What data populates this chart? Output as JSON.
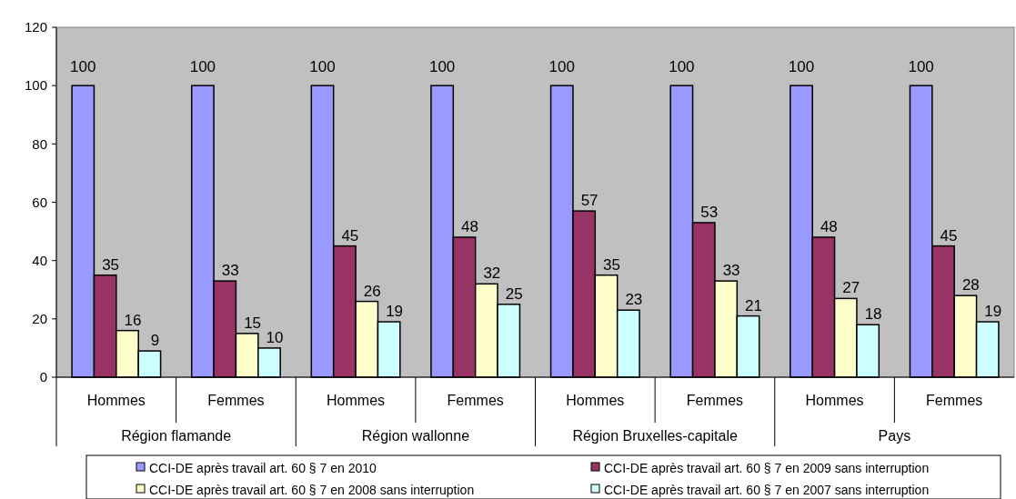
{
  "chart_data": {
    "type": "bar",
    "categories": [
      "Hommes",
      "Femmes",
      "Hommes",
      "Femmes",
      "Hommes",
      "Femmes",
      "Hommes",
      "Femmes"
    ],
    "annotations": [
      "Région flamande",
      "Région wallonne",
      "Région Bruxelles-capitale",
      "Pays"
    ],
    "series": [
      {
        "name": "CCI-DE après travail art. 60 § 7 en 2010",
        "color": "#9999ff",
        "values": [
          100,
          100,
          100,
          100,
          100,
          100,
          100,
          100
        ]
      },
      {
        "name": "CCI-DE après travail art. 60 § 7 en 2009 sans interruption",
        "color": "#993366",
        "values": [
          35,
          33,
          45,
          48,
          57,
          53,
          48,
          45
        ]
      },
      {
        "name": "CCI-DE après travail art. 60 § 7 en 2008 sans interruption",
        "color": "#ffffcc",
        "values": [
          16,
          15,
          26,
          32,
          35,
          33,
          27,
          28
        ]
      },
      {
        "name": "CCI-DE après travail art. 60 § 7 en 2007 sans interruption",
        "color": "#ccffff",
        "values": [
          9,
          10,
          19,
          25,
          23,
          21,
          18,
          19
        ]
      }
    ],
    "ylim": [
      0,
      120
    ],
    "yticks": [
      0,
      20,
      40,
      60,
      80,
      100,
      120
    ],
    "data_labels": true,
    "legend": "bottom",
    "grid": false
  }
}
